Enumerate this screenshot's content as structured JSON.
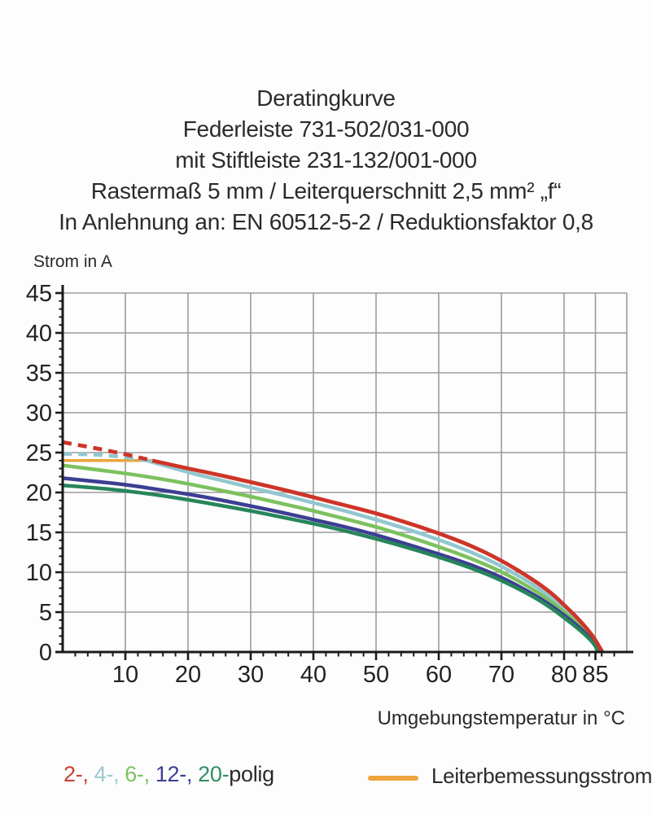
{
  "title": {
    "lines": [
      "Deratingkurve",
      "Federleiste 731-502/031-000",
      "mit Stiftleiste 231-132/001-000",
      "Rastermaß 5 mm / Leiterquerschnitt 2,5 mm² „f“",
      "In Anlehnung an: EN 60512-5-2 / Reduktionsfaktor 0,8"
    ]
  },
  "axes": {
    "y_label": "Strom in A",
    "x_label": "Umgebungstemperatur in °C"
  },
  "legend": {
    "poles": [
      {
        "text": "2-,",
        "color": "#c84132"
      },
      {
        "text": "4-,",
        "color": "#9cc9d1"
      },
      {
        "text": "6-,",
        "color": "#7cc15e"
      },
      {
        "text": "12-,",
        "color": "#3c3e92"
      },
      {
        "text": "20-",
        "color": "#2f8f63"
      }
    ],
    "poles_suffix": "polig",
    "rated_label": "Leiterbemessungsstrom",
    "rated_color": "#eda43b"
  },
  "chart_data": {
    "type": "line",
    "title": "Deratingkurve",
    "xlabel": "Umgebungstemperatur in °C",
    "ylabel": "Strom in A",
    "xlim": [
      0,
      90
    ],
    "ylim": [
      0,
      45
    ],
    "x_major_ticks": [
      10,
      20,
      30,
      40,
      50,
      60,
      70,
      80,
      85
    ],
    "x_minor_step": 2,
    "x_minor_max": 88,
    "y_major_ticks": [
      0,
      5,
      10,
      15,
      20,
      25,
      30,
      35,
      40,
      45
    ],
    "y_minor_step": 1,
    "grid": true,
    "grid_color": "#9c9c9c",
    "axis_color": "#1a1a1a",
    "tick_label_color": "#222222",
    "series": [
      {
        "name": "Leiterbemessungsstrom",
        "color": "#eda43b",
        "width": 3.5,
        "points": [
          [
            0,
            24.0
          ],
          [
            14.3,
            24.0
          ]
        ]
      },
      {
        "name": "4-polig",
        "color": "#92c7cf",
        "width": 4.5,
        "dashed_until": 13.5,
        "points": [
          [
            0,
            24.85
          ],
          [
            4,
            24.8
          ],
          [
            8,
            24.6
          ],
          [
            13.5,
            24.0
          ],
          [
            20,
            22.5
          ],
          [
            25,
            21.6
          ],
          [
            30,
            20.6
          ],
          [
            35,
            19.7
          ],
          [
            40,
            18.7
          ],
          [
            45,
            17.7
          ],
          [
            50,
            16.6
          ],
          [
            55,
            15.4
          ],
          [
            60,
            14.1
          ],
          [
            65,
            12.6
          ],
          [
            70,
            10.8
          ],
          [
            75,
            8.5
          ],
          [
            78,
            6.8
          ],
          [
            80,
            5.4
          ],
          [
            82,
            4.0
          ],
          [
            84,
            2.3
          ],
          [
            85,
            1.2
          ],
          [
            85.9,
            0
          ]
        ]
      },
      {
        "name": "6-polig",
        "color": "#7cc15e",
        "width": 4.5,
        "points": [
          [
            0,
            23.4
          ],
          [
            5,
            22.9
          ],
          [
            10,
            22.4
          ],
          [
            15,
            21.8
          ],
          [
            20,
            21.1
          ],
          [
            25,
            20.3
          ],
          [
            30,
            19.5
          ],
          [
            35,
            18.6
          ],
          [
            40,
            17.7
          ],
          [
            45,
            16.7
          ],
          [
            50,
            15.7
          ],
          [
            55,
            14.5
          ],
          [
            60,
            13.2
          ],
          [
            65,
            11.8
          ],
          [
            70,
            10.1
          ],
          [
            75,
            7.9
          ],
          [
            78,
            6.3
          ],
          [
            80,
            5.0
          ],
          [
            82,
            3.7
          ],
          [
            84,
            2.1
          ],
          [
            85,
            1.0
          ],
          [
            85.7,
            0
          ]
        ]
      },
      {
        "name": "12-polig",
        "color": "#3c3e92",
        "width": 4.5,
        "points": [
          [
            0,
            21.8
          ],
          [
            5,
            21.4
          ],
          [
            10,
            21.0
          ],
          [
            15,
            20.4
          ],
          [
            20,
            19.8
          ],
          [
            25,
            19.1
          ],
          [
            30,
            18.3
          ],
          [
            35,
            17.5
          ],
          [
            40,
            16.6
          ],
          [
            45,
            15.7
          ],
          [
            50,
            14.7
          ],
          [
            55,
            13.5
          ],
          [
            60,
            12.3
          ],
          [
            65,
            11.0
          ],
          [
            70,
            9.4
          ],
          [
            75,
            7.3
          ],
          [
            78,
            5.8
          ],
          [
            80,
            4.6
          ],
          [
            82,
            3.4
          ],
          [
            84,
            1.9
          ],
          [
            85,
            0.9
          ],
          [
            85.55,
            0
          ]
        ]
      },
      {
        "name": "20-polig",
        "color": "#27855a",
        "width": 4.5,
        "points": [
          [
            0,
            20.9
          ],
          [
            5,
            20.6
          ],
          [
            10,
            20.2
          ],
          [
            15,
            19.7
          ],
          [
            20,
            19.1
          ],
          [
            25,
            18.4
          ],
          [
            30,
            17.7
          ],
          [
            35,
            16.9
          ],
          [
            40,
            16.1
          ],
          [
            45,
            15.2
          ],
          [
            50,
            14.2
          ],
          [
            55,
            13.1
          ],
          [
            60,
            11.9
          ],
          [
            65,
            10.6
          ],
          [
            70,
            9.0
          ],
          [
            75,
            7.0
          ],
          [
            78,
            5.5
          ],
          [
            80,
            4.3
          ],
          [
            82,
            3.1
          ],
          [
            84,
            1.7
          ],
          [
            85,
            0.8
          ],
          [
            85.4,
            0
          ]
        ]
      },
      {
        "name": "2-polig",
        "color": "#cd3528",
        "width": 4.8,
        "dashed_until": 14.3,
        "points": [
          [
            0,
            26.3
          ],
          [
            5,
            25.6
          ],
          [
            10,
            24.8
          ],
          [
            14.3,
            24.0
          ],
          [
            20,
            23.0
          ],
          [
            25,
            22.2
          ],
          [
            30,
            21.3
          ],
          [
            35,
            20.4
          ],
          [
            40,
            19.4
          ],
          [
            45,
            18.4
          ],
          [
            50,
            17.4
          ],
          [
            55,
            16.2
          ],
          [
            60,
            14.9
          ],
          [
            65,
            13.4
          ],
          [
            70,
            11.5
          ],
          [
            75,
            9.1
          ],
          [
            78,
            7.4
          ],
          [
            80,
            5.9
          ],
          [
            82,
            4.4
          ],
          [
            84,
            2.6
          ],
          [
            85,
            1.5
          ],
          [
            86.1,
            0
          ]
        ]
      }
    ]
  }
}
